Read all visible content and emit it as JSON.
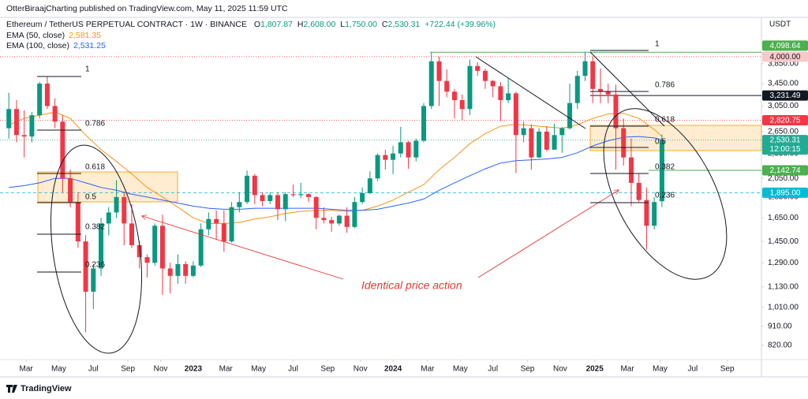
{
  "header": {
    "publisher": "OtterBiraajCharting published on TradingView.com, May 11, 2025 11:59 UTC",
    "symbol": "Ethereum / TetherUS PERPETUAL CONTRACT · 1W · BINANCE",
    "quote": [
      {
        "key": "O",
        "value": "1,807.87"
      },
      {
        "key": "H",
        "value": "2,608.00"
      },
      {
        "key": "L",
        "value": "1,750.00"
      },
      {
        "key": "C",
        "value": "2,530.31"
      }
    ],
    "change": "+722.44 (+39.96%)",
    "ema_values": [
      "2,581.35",
      "2,531.25"
    ],
    "currency": "USDT"
  },
  "annotation": "Identical price action",
  "fibs": [
    {
      "levels": [
        1,
        0.786,
        0.618,
        0.5,
        0.382,
        0.236
      ]
    },
    {
      "levels": [
        1,
        0.786,
        0.618,
        0.5,
        0.382,
        0.236
      ]
    }
  ],
  "footer": "TradingView",
  "chart_data": {
    "type": "candlestick",
    "scale": "log",
    "up_color": "#089981",
    "down_color": "#f23645",
    "ylim": [
      761,
      4900
    ],
    "yticks": [
      {
        "value": 820,
        "label": "820.00"
      },
      {
        "value": 910,
        "label": "910.00"
      },
      {
        "value": 1010,
        "label": "1,010.00"
      },
      {
        "value": 1130,
        "label": "1,130.00"
      },
      {
        "value": 1290,
        "label": "1,290.00"
      },
      {
        "value": 1450,
        "label": "1,450.00"
      },
      {
        "value": 1650,
        "label": "1,650.00"
      },
      {
        "value": 1850,
        "label": "1,850.00"
      },
      {
        "value": 2050,
        "label": "2,050.00"
      },
      {
        "value": 2350,
        "label": "2,350.00"
      },
      {
        "value": 2650,
        "label": "2,650.00"
      },
      {
        "value": 3050,
        "label": "3,050.00"
      },
      {
        "value": 3450,
        "label": "3,450.00"
      },
      {
        "value": 3850,
        "label": "3,850.00"
      }
    ],
    "xlim": [
      1.7,
      199.9
    ],
    "xticks": [
      {
        "value": 8.5,
        "label": "Mar"
      },
      {
        "value": 17,
        "label": "May"
      },
      {
        "value": 26,
        "label": "Jul"
      },
      {
        "value": 35,
        "label": "Sep"
      },
      {
        "value": 43.5,
        "label": "Nov"
      },
      {
        "value": 52,
        "label": "2023"
      },
      {
        "value": 60.5,
        "label": "Mar"
      },
      {
        "value": 69,
        "label": "May"
      },
      {
        "value": 78,
        "label": "Jul"
      },
      {
        "value": 87,
        "label": "Sep"
      },
      {
        "value": 95.5,
        "label": "Nov"
      },
      {
        "value": 104,
        "label": "2024"
      },
      {
        "value": 113,
        "label": "Mar"
      },
      {
        "value": 121.5,
        "label": "May"
      },
      {
        "value": 130,
        "label": "Jul"
      },
      {
        "value": 139,
        "label": "Sep"
      },
      {
        "value": 147.5,
        "label": "Nov"
      },
      {
        "value": 156.5,
        "label": "2025"
      },
      {
        "value": 165,
        "label": "Mar"
      },
      {
        "value": 173.5,
        "label": "May"
      },
      {
        "value": 182,
        "label": "Jul"
      },
      {
        "value": 191,
        "label": "Sep"
      }
    ],
    "x": [
      4,
      6,
      8,
      10,
      12,
      14,
      16,
      18,
      20,
      22,
      24,
      26,
      28,
      30,
      32,
      34,
      36,
      38,
      40,
      42,
      44,
      46,
      48,
      50,
      52,
      54,
      56,
      58,
      60,
      62,
      64,
      66,
      68,
      70,
      72,
      74,
      76,
      78,
      80,
      82,
      84,
      86,
      88,
      90,
      92,
      94,
      96,
      98,
      100,
      102,
      104,
      106,
      108,
      110,
      112,
      114,
      116,
      118,
      120,
      122,
      124,
      126,
      128,
      130,
      132,
      134,
      136,
      138,
      140,
      142,
      144,
      146,
      148,
      150,
      152,
      154,
      156,
      158,
      160,
      162,
      164,
      166,
      168,
      170,
      172,
      174
    ],
    "ohlc": [
      [
        2700,
        3280,
        2550,
        3000
      ],
      [
        3000,
        3150,
        2500,
        2600
      ],
      [
        2600,
        2980,
        2300,
        2580
      ],
      [
        2580,
        2950,
        2500,
        2900
      ],
      [
        2900,
        3480,
        2850,
        3450
      ],
      [
        3450,
        3580,
        3000,
        3050
      ],
      [
        3050,
        3180,
        2700,
        2800
      ],
      [
        2800,
        2900,
        1900,
        2050
      ],
      [
        2050,
        2150,
        1750,
        1800
      ],
      [
        1800,
        1900,
        1400,
        1450
      ],
      [
        1450,
        1500,
        880,
        1100
      ],
      [
        1100,
        1280,
        1000,
        1250
      ],
      [
        1250,
        1650,
        1200,
        1600
      ],
      [
        1600,
        1750,
        1500,
        1700
      ],
      [
        1700,
        2030,
        1650,
        1850
      ],
      [
        1850,
        1900,
        1420,
        1600
      ],
      [
        1600,
        1780,
        1400,
        1420
      ],
      [
        1420,
        1450,
        1250,
        1330
      ],
      [
        1330,
        1350,
        1190,
        1290
      ],
      [
        1290,
        1600,
        1270,
        1580
      ],
      [
        1580,
        1680,
        1080,
        1250
      ],
      [
        1250,
        1290,
        1090,
        1200
      ],
      [
        1200,
        1350,
        1150,
        1280
      ],
      [
        1280,
        1300,
        1150,
        1200
      ],
      [
        1200,
        1300,
        1190,
        1270
      ],
      [
        1270,
        1600,
        1260,
        1550
      ],
      [
        1550,
        1700,
        1500,
        1640
      ],
      [
        1640,
        1720,
        1460,
        1600
      ],
      [
        1600,
        1720,
        1370,
        1450
      ],
      [
        1450,
        1800,
        1440,
        1750
      ],
      [
        1750,
        1900,
        1700,
        1800
      ],
      [
        1800,
        2140,
        1780,
        2080
      ],
      [
        2080,
        2100,
        1780,
        1870
      ],
      [
        1870,
        1900,
        1760,
        1810
      ],
      [
        1810,
        1900,
        1780,
        1870
      ],
      [
        1870,
        1900,
        1630,
        1730
      ],
      [
        1730,
        1900,
        1620,
        1880
      ],
      [
        1880,
        1980,
        1850,
        1870
      ],
      [
        1870,
        2000,
        1840,
        1880
      ],
      [
        1880,
        1890,
        1800,
        1850
      ],
      [
        1850,
        1860,
        1550,
        1650
      ],
      [
        1650,
        1750,
        1600,
        1630
      ],
      [
        1630,
        1660,
        1530,
        1600
      ],
      [
        1600,
        1680,
        1580,
        1670
      ],
      [
        1670,
        1750,
        1520,
        1570
      ],
      [
        1570,
        1850,
        1560,
        1800
      ],
      [
        1800,
        1950,
        1780,
        1890
      ],
      [
        1890,
        2130,
        1880,
        2050
      ],
      [
        2050,
        2350,
        2020,
        2330
      ],
      [
        2330,
        2400,
        2150,
        2270
      ],
      [
        2270,
        2450,
        2100,
        2350
      ],
      [
        2350,
        2720,
        2300,
        2500
      ],
      [
        2500,
        2520,
        2160,
        2300
      ],
      [
        2300,
        2550,
        2250,
        2520
      ],
      [
        2520,
        3100,
        2500,
        3050
      ],
      [
        3050,
        4090,
        3000,
        3900
      ],
      [
        3900,
        4000,
        3050,
        3500
      ],
      [
        3500,
        3730,
        3200,
        3300
      ],
      [
        3300,
        3350,
        2850,
        3150
      ],
      [
        3150,
        3250,
        2820,
        3000
      ],
      [
        3000,
        3940,
        2900,
        3800
      ],
      [
        3800,
        3880,
        3600,
        3700
      ],
      [
        3700,
        3740,
        3350,
        3500
      ],
      [
        3500,
        3520,
        3200,
        3400
      ],
      [
        3400,
        3480,
        2810,
        3150
      ],
      [
        3150,
        3560,
        3100,
        3270
      ],
      [
        3270,
        3300,
        2110,
        2600
      ],
      [
        2600,
        2800,
        2500,
        2700
      ],
      [
        2700,
        2760,
        2150,
        2300
      ],
      [
        2300,
        2700,
        2290,
        2650
      ],
      [
        2650,
        2730,
        2380,
        2400
      ],
      [
        2400,
        2770,
        2400,
        2600
      ],
      [
        2600,
        2720,
        2360,
        2700
      ],
      [
        2700,
        3450,
        2680,
        3100
      ],
      [
        3100,
        3700,
        3000,
        3600
      ],
      [
        3600,
        4110,
        3500,
        3900
      ],
      [
        3900,
        4000,
        3100,
        3350
      ],
      [
        3350,
        3750,
        3100,
        3300
      ],
      [
        3300,
        3450,
        3100,
        3250
      ],
      [
        3250,
        3430,
        2150,
        2700
      ],
      [
        2700,
        2850,
        2200,
        2300
      ],
      [
        2300,
        2550,
        1760,
        2000
      ],
      [
        2000,
        2100,
        1800,
        1820
      ],
      [
        1820,
        1950,
        1385,
        1580
      ],
      [
        1580,
        1850,
        1550,
        1800
      ],
      [
        1807.87,
        2608,
        1750,
        2530.31
      ]
    ],
    "series": [
      {
        "name": "EMA (50, close)",
        "color": "#f7931a",
        "x": [
          4,
          8,
          12,
          16,
          20,
          24,
          28,
          32,
          36,
          40,
          44,
          48,
          52,
          56,
          60,
          64,
          68,
          72,
          76,
          80,
          84,
          88,
          92,
          96,
          100,
          104,
          108,
          112,
          116,
          120,
          124,
          128,
          132,
          136,
          140,
          144,
          148,
          152,
          156,
          160,
          164,
          168,
          172,
          174
        ],
        "values": [
          2750,
          2850,
          2900,
          2950,
          2850,
          2600,
          2400,
          2250,
          2100,
          1950,
          1850,
          1750,
          1650,
          1600,
          1600,
          1610,
          1640,
          1660,
          1690,
          1710,
          1720,
          1720,
          1710,
          1720,
          1760,
          1820,
          1900,
          1980,
          2150,
          2300,
          2480,
          2620,
          2730,
          2760,
          2740,
          2720,
          2700,
          2750,
          2850,
          2920,
          2930,
          2850,
          2680,
          2581.35
        ]
      },
      {
        "name": "EMA (100, close)",
        "color": "#2962ff",
        "x": [
          4,
          8,
          12,
          16,
          20,
          24,
          28,
          32,
          36,
          40,
          44,
          48,
          52,
          56,
          60,
          64,
          68,
          72,
          76,
          80,
          84,
          88,
          92,
          96,
          100,
          104,
          108,
          112,
          116,
          120,
          124,
          128,
          132,
          136,
          140,
          144,
          148,
          152,
          156,
          160,
          164,
          168,
          172,
          174
        ],
        "values": [
          1950,
          1970,
          2000,
          2050,
          2050,
          2000,
          1950,
          1920,
          1880,
          1850,
          1820,
          1790,
          1760,
          1740,
          1730,
          1730,
          1740,
          1740,
          1740,
          1740,
          1740,
          1730,
          1720,
          1720,
          1730,
          1760,
          1790,
          1830,
          1920,
          2000,
          2080,
          2160,
          2230,
          2260,
          2270,
          2280,
          2300,
          2360,
          2450,
          2520,
          2570,
          2580,
          2560,
          2531.25
        ]
      }
    ],
    "price_levels": [
      {
        "value": 4098.64,
        "label": "4,098.64",
        "color": "#4caf50",
        "line": "solid"
      },
      {
        "value": 4000,
        "label": "4,000.00",
        "color": "#f8c8c8",
        "text_color": "#131722",
        "line": "dotted"
      },
      {
        "value": 3231.49,
        "label": "3,231.49",
        "color": "#131722",
        "line": "solid"
      },
      {
        "value": 2820.75,
        "label": "2,820.75",
        "color": "#f23645",
        "line": "dotted"
      },
      {
        "value": 2530.31,
        "label": "2,530.31",
        "countdown": "12:00:15",
        "color": "#22ab94",
        "line": "dotted"
      },
      {
        "value": 2142.74,
        "label": "2,142.74",
        "color": "#4caf50",
        "line": "solid"
      },
      {
        "value": 1895,
        "label": "1,895.00",
        "color": "#00bcd4",
        "line": "dashed"
      }
    ]
  }
}
